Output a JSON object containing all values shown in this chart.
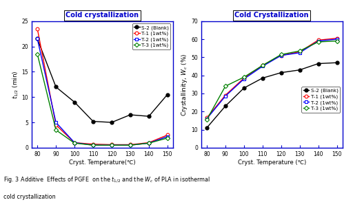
{
  "left_title": "Cold crystallization",
  "right_title": "Cold Crystallization",
  "xlabel_left": "Cryst. Temperature(℃)",
  "xlabel_right": "Cryst. Temperature (℃)",
  "left_ylabel": "$t_{1/2}$ (min)",
  "right_ylabel": "Crystallinity, $W_c$ (%)",
  "x_ticks": [
    80,
    90,
    100,
    110,
    120,
    130,
    140,
    150
  ],
  "left_ylim": [
    0,
    25
  ],
  "left_yticks": [
    0,
    5,
    10,
    15,
    20,
    25
  ],
  "right_ylim": [
    0,
    70
  ],
  "right_yticks": [
    0,
    10,
    20,
    30,
    40,
    50,
    60,
    70
  ],
  "xlim": [
    77,
    153
  ],
  "left_S2_x": [
    80,
    90,
    100,
    110,
    120,
    130,
    140,
    150
  ],
  "left_S2_y": [
    21.5,
    12.0,
    9.0,
    5.2,
    5.0,
    6.5,
    6.2,
    10.5
  ],
  "left_T1_x": [
    80,
    90,
    100,
    110,
    120,
    130,
    140,
    150
  ],
  "left_T1_y": [
    23.5,
    4.5,
    1.0,
    0.7,
    0.6,
    0.6,
    1.0,
    2.5
  ],
  "left_T2_x": [
    80,
    90,
    100,
    110,
    120,
    130,
    140,
    150
  ],
  "left_T2_y": [
    21.5,
    5.0,
    1.0,
    0.5,
    0.5,
    0.5,
    0.9,
    2.2
  ],
  "left_T3_x": [
    80,
    90,
    100,
    110,
    120,
    130,
    140,
    150
  ],
  "left_T3_y": [
    18.5,
    3.5,
    0.9,
    0.5,
    0.5,
    0.5,
    0.9,
    1.9
  ],
  "right_S2_x": [
    80,
    90,
    100,
    110,
    120,
    130,
    140,
    150
  ],
  "right_S2_y": [
    11.0,
    23.0,
    33.0,
    38.5,
    41.5,
    43.0,
    46.5,
    47.0
  ],
  "right_T1_x": [
    80,
    90,
    100,
    110,
    120,
    130,
    140,
    150
  ],
  "right_T1_y": [
    16.5,
    29.0,
    38.5,
    45.5,
    51.0,
    53.0,
    59.5,
    60.5
  ],
  "right_T2_x": [
    80,
    90,
    100,
    110,
    120,
    130,
    140,
    150
  ],
  "right_T2_y": [
    16.0,
    28.5,
    38.0,
    45.0,
    51.0,
    52.5,
    59.0,
    60.0
  ],
  "right_T3_x": [
    80,
    90,
    100,
    110,
    120,
    130,
    140,
    150
  ],
  "right_T3_y": [
    15.5,
    34.0,
    39.0,
    45.5,
    51.5,
    53.5,
    58.5,
    59.0
  ],
  "color_S2": "#000000",
  "color_T1": "#ff0000",
  "color_T2": "#0000ff",
  "color_T3": "#008000",
  "title_color": "#0000cc",
  "spine_color": "#0000cc",
  "fig_bg": "#ffffff"
}
